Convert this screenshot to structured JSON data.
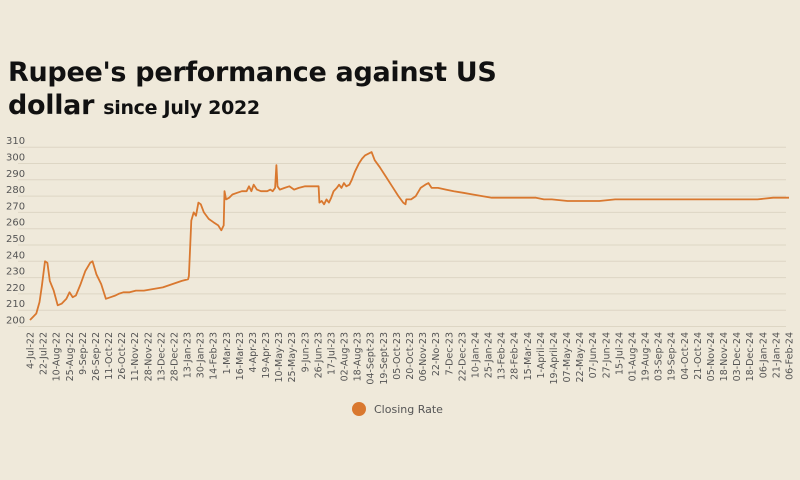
{
  "title_main": "Rupee's performance against US",
  "title_line2": "dollar",
  "title_sub": "since July 2022",
  "chart_data": {
    "type": "line",
    "title": "Rupee's performance against US dollar since July 2022",
    "xlabel": "",
    "ylabel": "",
    "ylim": [
      200,
      310
    ],
    "yticks": [
      200,
      210,
      220,
      230,
      240,
      250,
      260,
      270,
      280,
      290,
      300,
      310
    ],
    "grid": true,
    "legend_position": "bottom-center",
    "line_color": "#d9782f",
    "categories": [
      "4-Jul-22",
      "22-Jul-22",
      "10-Aug-22",
      "25-Aug-22",
      "9-Sep-22",
      "26-Sep-22",
      "11-Oct-22",
      "26-Oct-22",
      "11-Nov-22",
      "28-Nov-22",
      "13-Dec-22",
      "28-Dec-22",
      "13-Jan-23",
      "30-Jan-23",
      "14-Feb-23",
      "1-Mar-23",
      "16-Mar-23",
      "4-Apr-23",
      "19-Apr-23",
      "10-May-23",
      "25-May-23",
      "9-Jun-23",
      "26-Jun-23",
      "17-Jul-23",
      "02-Aug-23",
      "18-Aug-23",
      "04-Sept-23",
      "19-Sept-23",
      "05-Oct-23",
      "20-Oct-23",
      "06-Nov-23",
      "22-No-23",
      "7-Dec-23",
      "22-Dec-23",
      "10-Jan-24",
      "25-Jan-24",
      "13-Feb-24",
      "28-Feb-24",
      "15-Mar-24",
      "1-April-24",
      "19-April-24",
      "07-May-24",
      "22-May-24",
      "07-Jun-24",
      "27-Jun-24",
      "15-Jul-24",
      "01-Aug-24",
      "19-Aug-24",
      "03-Sep-24",
      "19-Sep-24",
      "04-Oct-24",
      "21-Oct-24",
      "05-Nov-24",
      "18-Nov-24",
      "03-Dec-24",
      "18-Dec-24",
      "06-Jan-24",
      "21-Jan-24",
      "06-Feb-24"
    ],
    "series": [
      {
        "name": "Closing Rate",
        "points": [
          [
            0,
            204
          ],
          [
            0.2,
            206
          ],
          [
            0.4,
            208
          ],
          [
            0.6,
            215
          ],
          [
            0.75,
            225
          ],
          [
            0.95,
            240
          ],
          [
            1.1,
            239
          ],
          [
            1.25,
            228
          ],
          [
            1.5,
            222
          ],
          [
            1.75,
            213
          ],
          [
            2.0,
            214
          ],
          [
            2.3,
            217
          ],
          [
            2.5,
            221
          ],
          [
            2.7,
            218
          ],
          [
            2.9,
            219
          ],
          [
            3.2,
            226
          ],
          [
            3.5,
            234
          ],
          [
            3.8,
            239
          ],
          [
            3.95,
            240
          ],
          [
            4.2,
            232
          ],
          [
            4.5,
            226
          ],
          [
            4.7,
            220
          ],
          [
            4.8,
            217
          ],
          [
            5.1,
            218
          ],
          [
            5.4,
            219
          ],
          [
            5.6,
            220
          ],
          [
            5.9,
            221
          ],
          [
            6.3,
            221
          ],
          [
            6.7,
            222
          ],
          [
            7.2,
            222
          ],
          [
            7.8,
            223
          ],
          [
            8.4,
            224
          ],
          [
            9.0,
            226
          ],
          [
            9.6,
            228
          ],
          [
            10.0,
            229
          ],
          [
            10.05,
            231
          ],
          [
            10.2,
            265
          ],
          [
            10.35,
            270
          ],
          [
            10.5,
            268
          ],
          [
            10.65,
            276
          ],
          [
            10.8,
            275
          ],
          [
            11.0,
            270
          ],
          [
            11.3,
            266
          ],
          [
            11.6,
            264
          ],
          [
            11.9,
            262
          ],
          [
            12.1,
            259
          ],
          [
            12.25,
            262
          ],
          [
            12.3,
            283
          ],
          [
            12.4,
            278
          ],
          [
            12.6,
            279
          ],
          [
            12.8,
            281
          ],
          [
            13.1,
            282
          ],
          [
            13.4,
            283
          ],
          [
            13.7,
            283
          ],
          [
            13.85,
            286
          ],
          [
            14.0,
            283
          ],
          [
            14.15,
            287
          ],
          [
            14.35,
            284
          ],
          [
            14.6,
            283
          ],
          [
            15.0,
            283
          ],
          [
            15.2,
            284
          ],
          [
            15.35,
            283
          ],
          [
            15.5,
            285
          ],
          [
            15.58,
            299
          ],
          [
            15.65,
            286
          ],
          [
            15.8,
            284
          ],
          [
            16.1,
            285
          ],
          [
            16.4,
            286
          ],
          [
            16.7,
            284
          ],
          [
            17.0,
            285
          ],
          [
            17.4,
            286
          ],
          [
            17.8,
            286
          ],
          [
            18.1,
            286
          ],
          [
            18.25,
            286
          ],
          [
            18.3,
            276
          ],
          [
            18.45,
            277
          ],
          [
            18.6,
            275
          ],
          [
            18.75,
            278
          ],
          [
            18.9,
            276
          ],
          [
            19.05,
            279
          ],
          [
            19.2,
            283
          ],
          [
            19.4,
            285
          ],
          [
            19.55,
            287
          ],
          [
            19.7,
            285
          ],
          [
            19.85,
            288
          ],
          [
            20.0,
            286
          ],
          [
            20.2,
            287
          ],
          [
            20.35,
            290
          ],
          [
            20.55,
            295
          ],
          [
            20.8,
            300
          ],
          [
            21.0,
            303
          ],
          [
            21.2,
            305
          ],
          [
            21.4,
            306
          ],
          [
            21.6,
            307
          ],
          [
            21.8,
            302
          ],
          [
            22.1,
            298
          ],
          [
            22.5,
            292
          ],
          [
            22.9,
            286
          ],
          [
            23.3,
            280
          ],
          [
            23.6,
            276
          ],
          [
            23.75,
            275
          ],
          [
            23.8,
            278
          ],
          [
            24.1,
            278
          ],
          [
            24.4,
            280
          ],
          [
            24.7,
            285
          ],
          [
            25.0,
            287
          ],
          [
            25.2,
            288
          ],
          [
            25.4,
            285
          ],
          [
            25.8,
            285
          ],
          [
            26.3,
            284
          ],
          [
            26.8,
            283
          ],
          [
            27.4,
            282
          ],
          [
            28.0,
            281
          ],
          [
            28.6,
            280
          ],
          [
            29.2,
            279
          ],
          [
            30,
            279
          ],
          [
            31,
            279
          ],
          [
            32,
            279
          ],
          [
            32.5,
            278
          ],
          [
            33,
            278
          ],
          [
            34,
            277
          ],
          [
            35,
            277
          ],
          [
            36,
            277
          ],
          [
            37,
            278
          ],
          [
            38,
            278
          ],
          [
            39,
            278
          ],
          [
            40,
            278
          ],
          [
            41,
            278
          ],
          [
            42,
            278
          ],
          [
            43,
            278
          ],
          [
            44,
            278
          ],
          [
            45,
            278
          ],
          [
            46,
            278
          ],
          [
            47,
            279
          ],
          [
            47.5,
            279
          ],
          [
            48,
            279
          ]
        ]
      }
    ]
  },
  "legend": {
    "label": "Closing Rate",
    "color": "#d9782f"
  }
}
